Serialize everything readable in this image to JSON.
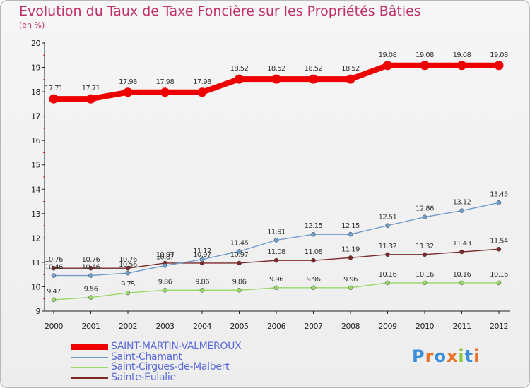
{
  "title": "Evolution du Taux de Taxe Foncière sur les Propriétés Bâties",
  "subtitle": "(en %)",
  "logo": "Proxiti",
  "colors": {
    "title": "#c0306a",
    "legend_text": "#5a6ad8",
    "axis": "#222222"
  },
  "chart_data": {
    "type": "line",
    "title": "Evolution du Taux de Taxe Foncière sur les Propriétés Bâties",
    "ylabel": "(en %)",
    "xlabel": "",
    "x": [
      "2000",
      "2001",
      "2002",
      "2003",
      "2004",
      "2005",
      "2006",
      "2007",
      "2008",
      "2009",
      "2010",
      "2011",
      "2012"
    ],
    "ylim": [
      9,
      20
    ],
    "yticks": [
      9,
      10,
      11,
      12,
      13,
      14,
      15,
      16,
      17,
      18,
      19,
      20
    ],
    "grid": false,
    "legend_position": "bottom-left",
    "series": [
      {
        "name": "SAINT-MARTIN-VALMEROUX",
        "color": "#ee0000",
        "values": [
          17.71,
          17.71,
          17.98,
          17.98,
          17.98,
          18.52,
          18.52,
          18.52,
          18.52,
          19.08,
          19.08,
          19.08,
          19.08
        ],
        "labels": [
          "17.71",
          "17.71",
          "17.98",
          "17.98",
          "17.98",
          "18.52",
          "18.52",
          "18.52",
          "18.52",
          "19.08",
          "19.08",
          "19.08",
          "19.08"
        ]
      },
      {
        "name": "Saint-Chamant",
        "color": "#6f9ccc",
        "values": [
          10.46,
          10.46,
          10.56,
          10.87,
          11.12,
          11.45,
          11.91,
          12.15,
          12.15,
          12.51,
          12.86,
          13.12,
          13.45
        ],
        "labels": [
          "10.46",
          "10.46",
          "10.56",
          "10.87",
          "11.12",
          "11.45",
          "11.91",
          "12.15",
          "12.15",
          "12.51",
          "12.86",
          "13.12",
          "13.45"
        ]
      },
      {
        "name": "Saint-Cirgues-de-Malbert",
        "color": "#99d868",
        "values": [
          9.47,
          9.56,
          9.75,
          9.86,
          9.86,
          9.86,
          9.96,
          9.96,
          9.96,
          10.16,
          10.16,
          10.16,
          10.16
        ],
        "labels": [
          "9.47",
          "9.56",
          "9.75",
          "9.86",
          "9.86",
          "9.86",
          "9.96",
          "9.96",
          "9.96",
          "10.16",
          "10.16",
          "10.16",
          "10.16"
        ]
      },
      {
        "name": "Sainte-Eulalie",
        "color": "#7a2828",
        "values": [
          10.76,
          10.76,
          10.76,
          10.97,
          10.97,
          10.97,
          11.08,
          11.08,
          11.19,
          11.32,
          11.32,
          11.43,
          11.54
        ],
        "labels": [
          "10.76",
          "10.76",
          "10.76",
          "10.97",
          "10.97",
          "10.97",
          "11.08",
          "11.08",
          "11.19",
          "11.32",
          "11.32",
          "11.43",
          "11.54"
        ]
      }
    ]
  }
}
